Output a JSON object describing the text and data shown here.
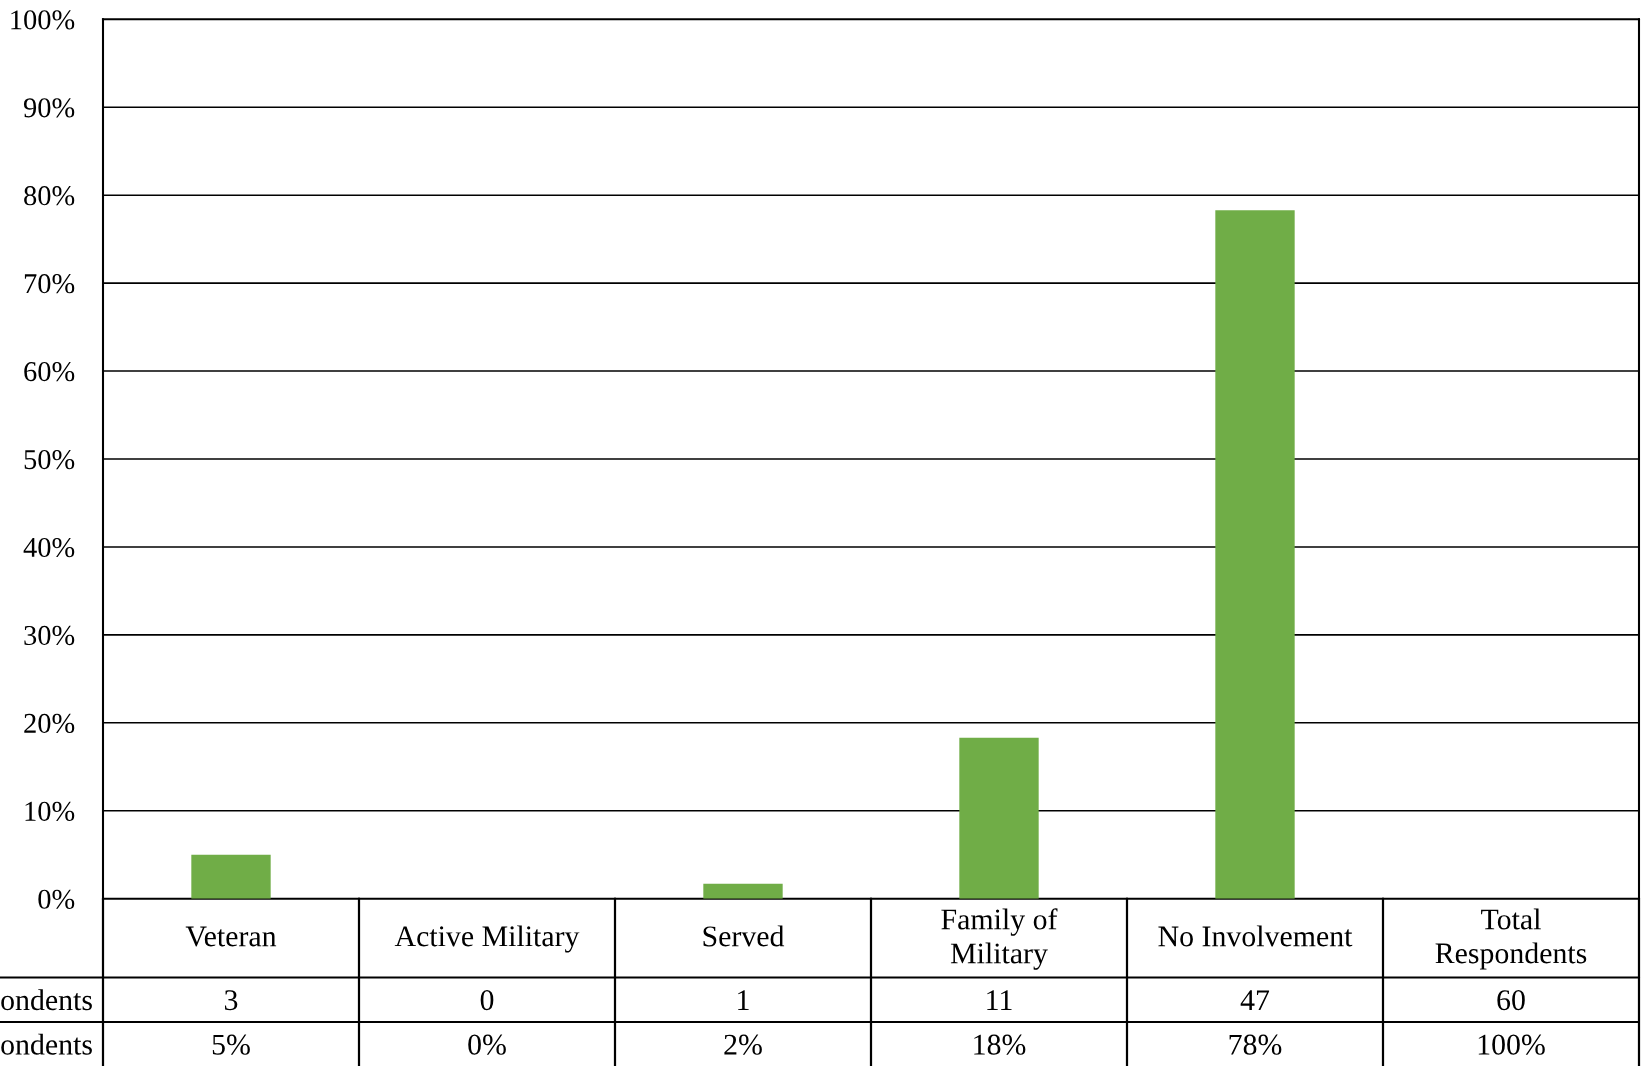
{
  "chart_data": {
    "type": "bar",
    "categories": [
      "Veteran",
      "Active Military",
      "Served",
      "Family of\nMilitary",
      "No Involvement",
      "Total\nRespondents"
    ],
    "series": [
      {
        "name": "ondents",
        "color": "#70ad47",
        "values": [
          5,
          0,
          1.7,
          18.3,
          78.3,
          null
        ],
        "value_labels": [
          "5%",
          "0%",
          "2%",
          "18%",
          "78%",
          "100%"
        ]
      }
    ],
    "annotations": [
      "ondents",
      "3",
      "0",
      "1",
      "11",
      "47",
      "60"
    ],
    "ylim": [
      0,
      100
    ],
    "yticks": [
      {
        "value": 0,
        "label": "0%"
      },
      {
        "value": 10,
        "label": "10%"
      },
      {
        "value": 20,
        "label": "20%"
      },
      {
        "value": 30,
        "label": "30%"
      },
      {
        "value": 40,
        "label": "40%"
      },
      {
        "value": 50,
        "label": "50%"
      },
      {
        "value": 60,
        "label": "60%"
      },
      {
        "value": 70,
        "label": "70%"
      },
      {
        "value": 80,
        "label": "80%"
      },
      {
        "value": 90,
        "label": "90%"
      },
      {
        "value": 100,
        "label": "100%"
      }
    ],
    "grid": "y",
    "legend": false
  }
}
